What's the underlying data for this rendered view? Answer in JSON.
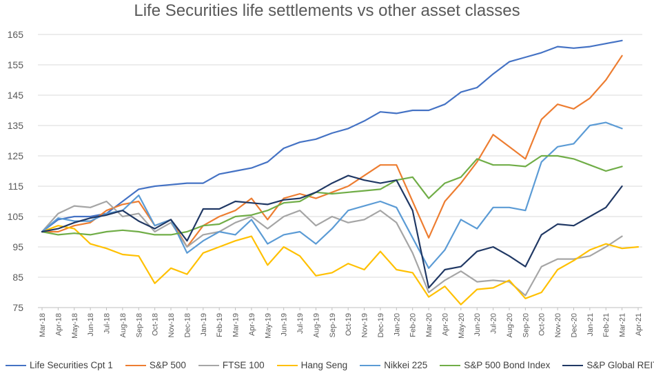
{
  "chart_data": {
    "type": "line",
    "title": "Life Securities life settlements vs other asset classes",
    "xlabel": "",
    "ylabel": "",
    "ylim": [
      75,
      165
    ],
    "yticks": [
      75,
      85,
      95,
      105,
      115,
      125,
      135,
      145,
      155,
      165
    ],
    "grid": "horizontal",
    "legend": "bottom",
    "categories": [
      "Mar-18",
      "Apr-18",
      "May-18",
      "Jun-18",
      "Jul-18",
      "Aug-18",
      "Sep-18",
      "Oct-18",
      "Nov-18",
      "Dec-18",
      "Jan-19",
      "Feb-19",
      "Mar-19",
      "Apr-19",
      "May-19",
      "Jun-19",
      "Jul-19",
      "Aug-19",
      "Sep-19",
      "Oct-19",
      "Nov-19",
      "Dec-19",
      "Jan-20",
      "Feb-20",
      "Mar-20",
      "Apr-20",
      "May-20",
      "Jun-20",
      "Jul-20",
      "Aug-20",
      "Sep-20",
      "Oct-20",
      "Nov-20",
      "Dec-20",
      "Jan-21",
      "Feb-21",
      "Mar-21",
      "Apr-21"
    ],
    "series": [
      {
        "name": "Life Securities Cpt 1",
        "color": "#4472c4",
        "values": [
          100,
          104,
          105,
          105,
          106,
          110,
          114,
          115,
          115.5,
          116,
          116,
          119,
          120,
          121,
          123,
          127.5,
          129.5,
          130.5,
          132.5,
          134,
          136.5,
          139.5,
          139,
          140,
          140,
          142,
          146,
          147.5,
          152,
          156,
          157.5,
          159,
          161,
          160.5,
          161,
          162,
          163,
          null
        ]
      },
      {
        "name": "S&P 500",
        "color": "#ed7d31",
        "values": [
          100,
          100,
          102,
          103,
          107,
          109,
          110,
          102,
          104,
          95,
          102,
          105,
          107,
          111,
          104,
          111,
          112.5,
          111,
          113,
          115,
          118.5,
          122,
          122,
          110,
          98,
          110,
          116,
          123,
          132,
          128,
          124,
          137,
          142,
          140.5,
          144,
          150,
          158,
          null
        ]
      },
      {
        "name": "FTSE 100",
        "color": "#a5a5a5",
        "values": [
          100,
          106,
          108.5,
          108,
          110,
          105,
          106,
          100,
          103,
          95,
          99,
          100,
          103,
          105,
          101,
          105,
          107,
          102,
          105,
          103,
          104,
          107,
          103,
          93,
          80,
          84,
          87,
          83.5,
          84,
          83.5,
          79,
          88.5,
          91,
          91,
          92,
          95,
          98.5,
          null
        ]
      },
      {
        "name": "Hang Seng",
        "color": "#ffc000",
        "values": [
          100,
          102,
          101,
          96,
          94.5,
          92.5,
          92,
          83,
          88,
          86,
          93,
          95,
          97,
          98.5,
          89,
          95,
          92,
          85.5,
          86.5,
          89.5,
          87.5,
          93.5,
          87.5,
          86.5,
          78.5,
          82,
          76,
          81,
          81.5,
          84,
          78,
          80,
          87.5,
          90.5,
          94,
          96,
          94.5,
          95
        ]
      },
      {
        "name": "Nikkei 225",
        "color": "#5b9bd5",
        "values": [
          100,
          104.5,
          103.5,
          103.5,
          106,
          107,
          112,
          102,
          104,
          93,
          97,
          100,
          99,
          104,
          96,
          99,
          100,
          96,
          101,
          107,
          108.5,
          110,
          108,
          98,
          88,
          94,
          104,
          101,
          108,
          108,
          107,
          123,
          128,
          129,
          135,
          136,
          134,
          null
        ]
      },
      {
        "name": "S&P 500 Bond Index",
        "color": "#70ad47",
        "values": [
          100,
          99,
          99.5,
          99,
          100,
          100.5,
          100,
          99,
          99,
          100,
          102,
          102.5,
          105,
          105.5,
          107,
          109.5,
          110,
          113,
          112.5,
          113,
          113.5,
          114,
          117,
          118,
          111,
          116,
          118,
          124,
          122,
          122,
          121.5,
          125,
          125,
          124,
          122,
          120,
          121.5,
          null
        ]
      },
      {
        "name": "S&P Global REIT",
        "color": "#203864",
        "values": [
          100,
          101,
          103,
          104.5,
          105.5,
          107,
          103.5,
          101,
          104,
          97,
          107.5,
          107.5,
          110,
          109.5,
          109,
          110.5,
          111,
          113,
          116,
          118.5,
          117,
          116,
          117,
          107,
          81.5,
          87.5,
          88.5,
          93.5,
          95,
          92,
          88.5,
          99,
          102.5,
          102,
          105,
          108,
          115,
          null
        ]
      }
    ]
  }
}
